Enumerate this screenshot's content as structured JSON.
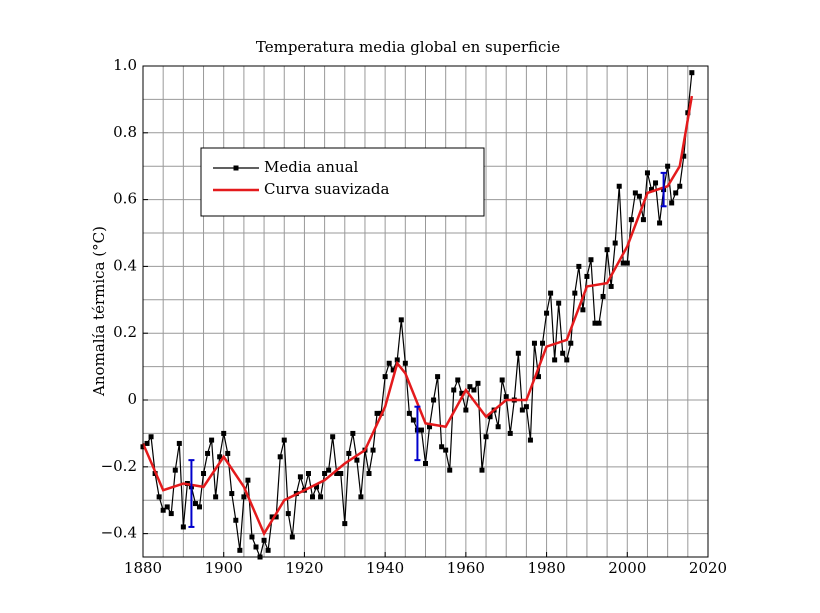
{
  "chart_data": {
    "type": "line",
    "title": "Temperatura media global en superficie",
    "ylabel": "Anomalía térmica (°C)",
    "xlim": [
      1880,
      2020
    ],
    "xticks": [
      1880,
      1900,
      1920,
      1940,
      1960,
      1980,
      2000,
      2020
    ],
    "ylim": [
      -0.47,
      1.0
    ],
    "yticks": [
      {
        "value": -0.4,
        "label": "−0.4"
      },
      {
        "value": -0.2,
        "label": "−0.2"
      },
      0,
      0.2,
      0.4,
      0.6,
      0.8,
      {
        "value": 1.0,
        "label": "1.0"
      }
    ],
    "grid": true,
    "xgrid": [
      1880,
      1885,
      1890,
      1895,
      1900,
      1905,
      1910,
      1915,
      1920,
      1925,
      1930,
      1935,
      1940,
      1945,
      1950,
      1955,
      1960,
      1965,
      1970,
      1975,
      1980,
      1985,
      1990,
      1995,
      2000,
      2005,
      2010,
      2015,
      2020
    ],
    "ygrid": [
      -0.4,
      -0.3,
      -0.2,
      -0.1,
      0,
      0.1,
      0.2,
      0.3,
      0.4,
      0.5,
      0.6,
      0.7,
      0.8,
      0.9,
      1.0
    ],
    "legend": "upper left",
    "series": [
      {
        "name": "Media anual",
        "color": "#000000",
        "markers": true,
        "x": [
          1880,
          1881,
          1882,
          1883,
          1884,
          1885,
          1886,
          1887,
          1888,
          1889,
          1890,
          1891,
          1892,
          1893,
          1894,
          1895,
          1896,
          1897,
          1898,
          1899,
          1900,
          1901,
          1902,
          1903,
          1904,
          1905,
          1906,
          1907,
          1908,
          1909,
          1910,
          1911,
          1912,
          1913,
          1914,
          1915,
          1916,
          1917,
          1918,
          1919,
          1920,
          1921,
          1922,
          1923,
          1924,
          1925,
          1926,
          1927,
          1928,
          1929,
          1930,
          1931,
          1932,
          1933,
          1934,
          1935,
          1936,
          1937,
          1938,
          1939,
          1940,
          1941,
          1942,
          1943,
          1944,
          1945,
          1946,
          1947,
          1948,
          1949,
          1950,
          1951,
          1952,
          1953,
          1954,
          1955,
          1956,
          1957,
          1958,
          1959,
          1960,
          1961,
          1962,
          1963,
          1964,
          1965,
          1966,
          1967,
          1968,
          1969,
          1970,
          1971,
          1972,
          1973,
          1974,
          1975,
          1976,
          1977,
          1978,
          1979,
          1980,
          1981,
          1982,
          1983,
          1984,
          1985,
          1986,
          1987,
          1988,
          1989,
          1990,
          1991,
          1992,
          1993,
          1994,
          1995,
          1996,
          1997,
          1998,
          1999,
          2000,
          2001,
          2002,
          2003,
          2004,
          2005,
          2006,
          2007,
          2008,
          2009,
          2010,
          2011,
          2012,
          2013,
          2014,
          2015,
          2016
        ],
        "values": [
          -0.14,
          -0.13,
          -0.11,
          -0.22,
          -0.29,
          -0.33,
          -0.32,
          -0.34,
          -0.21,
          -0.13,
          -0.38,
          -0.25,
          -0.26,
          -0.31,
          -0.32,
          -0.22,
          -0.16,
          -0.12,
          -0.29,
          -0.17,
          -0.1,
          -0.16,
          -0.28,
          -0.36,
          -0.45,
          -0.29,
          -0.24,
          -0.41,
          -0.44,
          -0.47,
          -0.42,
          -0.45,
          -0.35,
          -0.35,
          -0.17,
          -0.12,
          -0.34,
          -0.41,
          -0.28,
          -0.23,
          -0.27,
          -0.22,
          -0.29,
          -0.26,
          -0.29,
          -0.22,
          -0.21,
          -0.11,
          -0.22,
          -0.22,
          -0.37,
          -0.16,
          -0.1,
          -0.18,
          -0.29,
          -0.15,
          -0.22,
          -0.15,
          -0.04,
          -0.04,
          0.07,
          0.11,
          0.09,
          0.12,
          0.24,
          0.11,
          -0.04,
          -0.06,
          -0.09,
          -0.09,
          -0.19,
          -0.08,
          0.0,
          0.07,
          -0.14,
          -0.15,
          -0.21,
          0.03,
          0.06,
          0.02,
          -0.03,
          0.04,
          0.03,
          0.05,
          -0.21,
          -0.11,
          -0.05,
          -0.03,
          -0.08,
          0.06,
          0.01,
          -0.1,
          0.0,
          0.14,
          -0.03,
          -0.02,
          -0.12,
          0.17,
          0.07,
          0.17,
          0.26,
          0.32,
          0.12,
          0.29,
          0.14,
          0.12,
          0.17,
          0.32,
          0.4,
          0.27,
          0.37,
          0.42,
          0.23,
          0.23,
          0.31,
          0.45,
          0.34,
          0.47,
          0.64,
          0.41,
          0.41,
          0.54,
          0.62,
          0.61,
          0.54,
          0.68,
          0.63,
          0.65,
          0.53,
          0.63,
          0.7,
          0.59,
          0.62,
          0.64,
          0.73,
          0.86,
          0.98
        ]
      },
      {
        "name": "Curva suavizada",
        "color": "#e41a1c",
        "markers": false,
        "x": [
          1880,
          1885,
          1890,
          1895,
          1900,
          1905,
          1910,
          1915,
          1920,
          1925,
          1930,
          1935,
          1940,
          1943,
          1945,
          1950,
          1955,
          1960,
          1965,
          1970,
          1975,
          1980,
          1985,
          1990,
          1995,
          2000,
          2005,
          2010,
          2013,
          2016
        ],
        "values": [
          -0.13,
          -0.27,
          -0.25,
          -0.26,
          -0.17,
          -0.26,
          -0.4,
          -0.3,
          -0.27,
          -0.24,
          -0.19,
          -0.15,
          -0.02,
          0.11,
          0.08,
          -0.07,
          -0.08,
          0.03,
          -0.05,
          0.0,
          0.0,
          0.16,
          0.18,
          0.34,
          0.35,
          0.46,
          0.62,
          0.64,
          0.7,
          0.91
        ]
      }
    ],
    "error_bars": {
      "color": "#0000cc",
      "x": [
        1892,
        1948,
        2009
      ],
      "values": [
        -0.28,
        -0.1,
        0.63
      ],
      "errors": [
        0.1,
        0.08,
        0.05
      ]
    }
  }
}
